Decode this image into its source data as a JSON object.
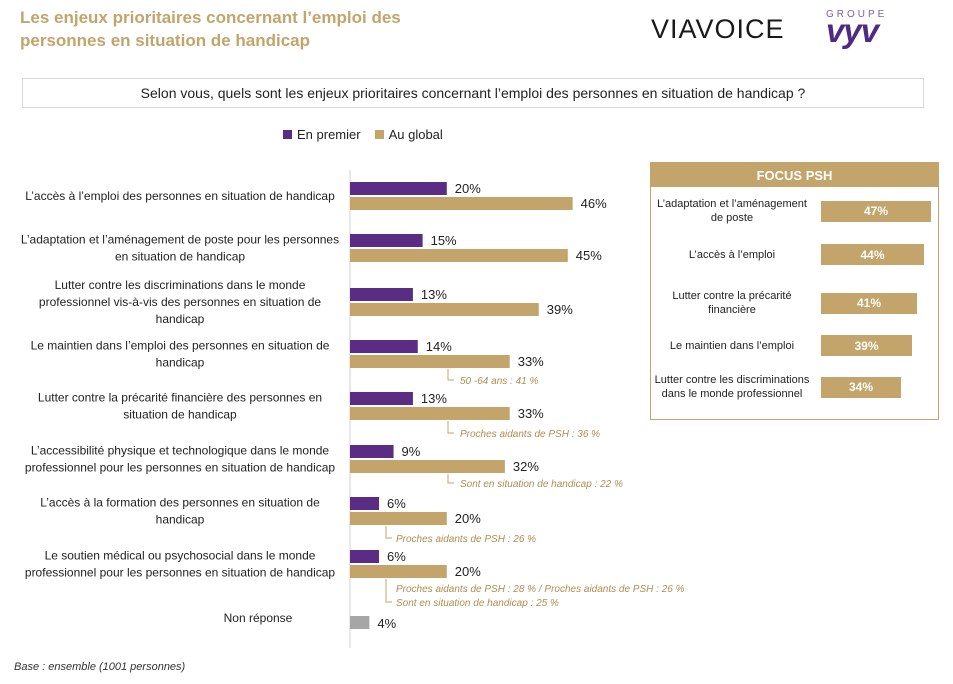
{
  "header": {
    "title": "Les enjeux prioritaires concernant l’emploi des personnes en situation de handicap",
    "logo_viavoice": "VIAVOICE",
    "logo_groupe": "GROUPE",
    "logo_vyv": "vyv"
  },
  "question": "Selon vous, quels sont les enjeux prioritaires concernant l’emploi des personnes en situation de handicap ?",
  "legend": [
    {
      "label": "En premier",
      "color": "#5b2c83"
    },
    {
      "label": "Au global",
      "color": "#c3a46b"
    }
  ],
  "chart_data": {
    "type": "bar",
    "orientation": "horizontal",
    "categories": [
      "L’accès à l’emploi des personnes en situation de handicap",
      "L’adaptation et l’aménagement de poste pour les personnes en situation de handicap",
      "Lutter contre les discriminations dans le monde professionnel vis-à-vis des personnes en situation de handicap",
      "Le maintien dans l’emploi des personnes en situation de handicap",
      "Lutter contre la précarité financière des personnes en situation de handicap",
      "L’accessibilité physique et technologique dans le monde professionnel pour les personnes en situation de handicap",
      "L’accès à la formation des personnes en situation de handicap",
      "Le soutien médical ou psychosocial dans le monde professionnel pour les personnes en situation de handicap",
      "Non réponse"
    ],
    "series": [
      {
        "name": "En premier",
        "color": "#5b2c83",
        "values": [
          20,
          15,
          13,
          14,
          13,
          9,
          6,
          6,
          null
        ]
      },
      {
        "name": "Au global",
        "color": "#c3a46b",
        "values": [
          46,
          45,
          39,
          33,
          33,
          32,
          20,
          20,
          null
        ]
      }
    ],
    "non_reponse": {
      "value": 4,
      "color": "#a6a6a6"
    },
    "value_labels": {
      "first": [
        "20%",
        "15%",
        "13%",
        "14%",
        "13%",
        "9%",
        "6%",
        "6%"
      ],
      "global": [
        "46%",
        "45%",
        "39%",
        "33%",
        "33%",
        "32%",
        "20%",
        "20%"
      ],
      "non_reponse": "4%"
    },
    "annotations": [
      {
        "category_index": 3,
        "lines": [
          "50 -64 ans : 41 %"
        ]
      },
      {
        "category_index": 4,
        "lines": [
          "Proches aidants de PSH : 36 %"
        ]
      },
      {
        "category_index": 5,
        "lines": [
          "Sont en situation de handicap : 22 %"
        ]
      },
      {
        "category_index": 6,
        "lines": [
          "Proches aidants de PSH : 26 %"
        ]
      },
      {
        "category_index": 7,
        "lines": [
          "Proches aidants de PSH : 28 % / Proches aidants de PSH : 26 %",
          "Sont en situation de handicap : 25 %"
        ]
      }
    ]
  },
  "focus": {
    "title": "FOCUS PSH",
    "items": [
      {
        "label": "L’adaptation et l’aménagement de poste",
        "value": 47,
        "text": "47%"
      },
      {
        "label": "L’accès à l’emploi",
        "value": 44,
        "text": "44%"
      },
      {
        "label": "Lutter contre la précarité financière",
        "value": 41,
        "text": "41%"
      },
      {
        "label": "Le maintien dans l’emploi",
        "value": 39,
        "text": "39%"
      },
      {
        "label": "Lutter contre les discriminations dans le monde professionnel",
        "value": 34,
        "text": "34%"
      }
    ]
  },
  "base": "Base : ensemble (1001 personnes)"
}
